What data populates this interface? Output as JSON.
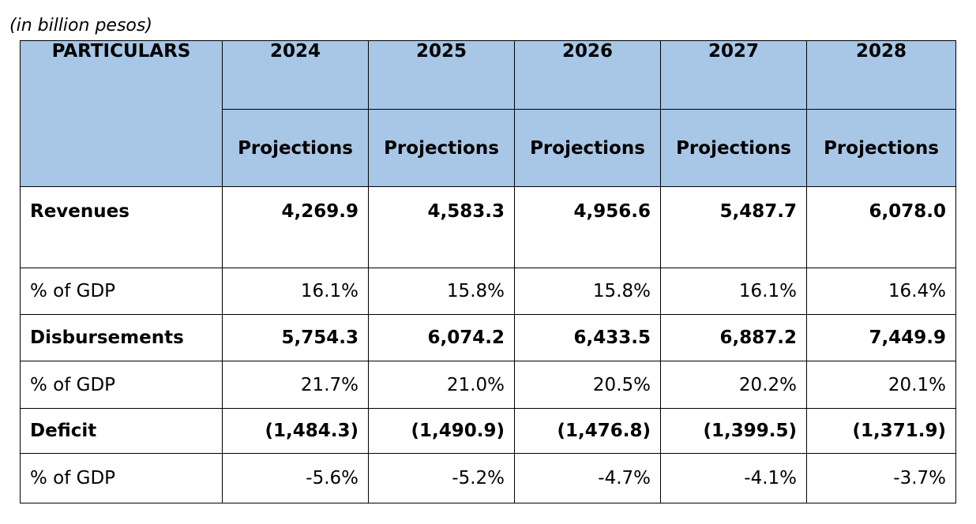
{
  "caption": "(in billion pesos)",
  "header": {
    "particulars": "PARTICULARS",
    "years": [
      "2024",
      "2025",
      "2026",
      "2027",
      "2028"
    ],
    "subheads": [
      "Projections",
      "Projections",
      "Projections",
      "Projections",
      "Projections"
    ]
  },
  "rows": [
    {
      "label": "Revenues",
      "values": [
        "4,269.9",
        "4,583.3",
        "4,956.6",
        "5,487.7",
        "6,078.0"
      ]
    },
    {
      "label": "% of GDP",
      "values": [
        "16.1%",
        "15.8%",
        "15.8%",
        "16.1%",
        "16.4%"
      ]
    },
    {
      "label": "Disbursements",
      "values": [
        "5,754.3",
        "6,074.2",
        "6,433.5",
        "6,887.2",
        "7,449.9"
      ]
    },
    {
      "label": "% of GDP",
      "values": [
        "21.7%",
        "21.0%",
        "20.5%",
        "20.2%",
        "20.1%"
      ]
    },
    {
      "label": "Deficit",
      "values": [
        "(1,484.3)",
        "(1,490.9)",
        "(1,476.8)",
        "(1,399.5)",
        "(1,371.9)"
      ]
    },
    {
      "label": "% of GDP",
      "values": [
        "-5.6%",
        "-5.2%",
        "-4.7%",
        "-4.1%",
        "-3.7%"
      ]
    }
  ],
  "colors": {
    "header_background": "#a8c6e6",
    "border": "#000000"
  }
}
